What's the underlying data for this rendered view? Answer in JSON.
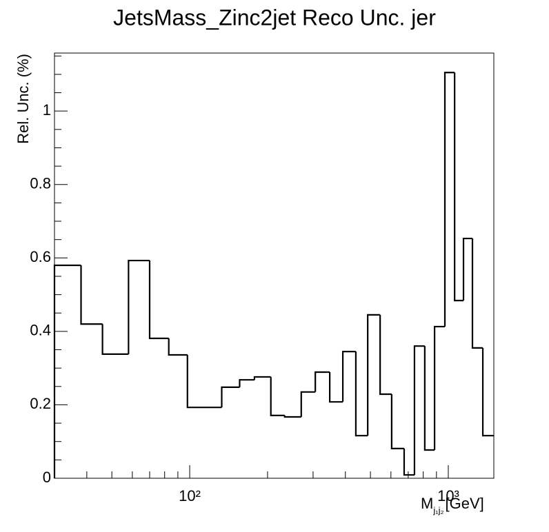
{
  "chart_data": {
    "type": "histogram",
    "title": "JetsMass_Zinc2jet Reco Unc. jer",
    "y_label": "Rel. Unc. (%)",
    "x_label": {
      "main": "M",
      "sub": "j₁j₂",
      "unit": "[GeV]"
    },
    "x_log": true,
    "color": "#000000",
    "bins": [
      30,
      38,
      46,
      58,
      70,
      83,
      98,
      133,
      156,
      178,
      206,
      233,
      270,
      306,
      348,
      391,
      439,
      488,
      545,
      604,
      675,
      740,
      811,
      885,
      970,
      1058,
      1145,
      1240,
      1360,
      1500
    ],
    "values": [
      0.58,
      0.42,
      0.338,
      0.593,
      0.381,
      0.336,
      0.193,
      0.248,
      0.268,
      0.276,
      0.171,
      0.167,
      0.235,
      0.289,
      0.208,
      0.345,
      0.116,
      0.445,
      0.229,
      0.081,
      0.009,
      0.36,
      0.077,
      0.413,
      1.105,
      0.484,
      0.653,
      0.355,
      0.116
    ],
    "xlim": [
      30,
      1500
    ],
    "ylim": [
      0,
      1.158
    ],
    "xticks": [
      {
        "value": 100,
        "label": "10²"
      },
      {
        "value": 1000,
        "label": "10³"
      }
    ],
    "xminorticks": [
      40,
      50,
      60,
      70,
      80,
      90,
      200,
      300,
      400,
      500,
      600,
      700,
      800,
      900
    ],
    "yticks": [
      0,
      0.2,
      0.4,
      0.6,
      0.8,
      1
    ],
    "yminorticks": [
      0.05,
      0.1,
      0.15,
      0.25,
      0.3,
      0.35,
      0.45,
      0.5,
      0.55,
      0.65,
      0.7,
      0.75,
      0.85,
      0.9,
      0.95,
      1.05,
      1.1,
      1.15
    ]
  }
}
